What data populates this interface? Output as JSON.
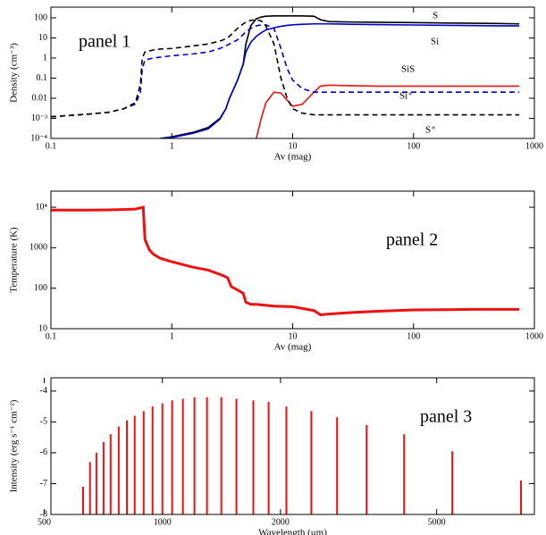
{
  "chart_data": [
    {
      "type": "line",
      "annotation": "panel 1",
      "xlabel": "Av (mag)",
      "ylabel": "Density (cm⁻³)",
      "log_x": true,
      "log_y": true,
      "xlim": [
        0.1,
        1000
      ],
      "ylim": [
        0.0001,
        340
      ],
      "xticks": [
        0.1,
        1,
        10,
        100,
        1000
      ],
      "yticks": [
        {
          "value": 0.0001,
          "label": "10⁻⁴"
        },
        {
          "value": 0.001,
          "label": "10⁻³"
        },
        0.01,
        0.1,
        1,
        10,
        100
      ],
      "x": [
        0.1,
        0.2,
        0.3,
        0.4,
        0.5,
        0.55,
        0.57,
        0.6,
        0.7,
        0.8,
        1,
        1.5,
        2,
        2.5,
        2.8,
        3,
        3.5,
        3.9,
        4.1,
        4.5,
        5,
        5.5,
        6,
        7,
        8,
        9,
        10,
        12,
        15,
        17,
        20,
        30,
        50,
        100,
        200,
        500,
        750
      ],
      "series": [
        {
          "name": "S",
          "color": "#000000",
          "line_style": "solid",
          "values": [
            null,
            null,
            null,
            null,
            null,
            null,
            null,
            null,
            null,
            0.0001,
            0.00012,
            0.0002,
            0.00035,
            0.001,
            0.003,
            0.01,
            0.08,
            0.5,
            5,
            40,
            90,
            110,
            120,
            125,
            125,
            125,
            125,
            125,
            120,
            80,
            65,
            62,
            60,
            58,
            55,
            52,
            50
          ]
        },
        {
          "name": "Si",
          "color": "#0000cc",
          "line_style": "solid",
          "values": [
            null,
            null,
            null,
            null,
            null,
            null,
            null,
            null,
            null,
            0.0001,
            0.00011,
            0.00018,
            0.0003,
            0.0009,
            0.003,
            0.01,
            0.08,
            0.5,
            2,
            6,
            12,
            18,
            25,
            32,
            38,
            42,
            45,
            48,
            50,
            50,
            50,
            48,
            46,
            44,
            42,
            40,
            40
          ]
        },
        {
          "name": "SiS",
          "color": "#ee1111",
          "line_style": "solid",
          "values": [
            null,
            null,
            null,
            null,
            null,
            null,
            null,
            null,
            null,
            null,
            null,
            null,
            null,
            null,
            null,
            null,
            null,
            null,
            null,
            null,
            0.0001,
            0.001,
            0.006,
            0.02,
            0.018,
            0.008,
            0.004,
            0.005,
            0.02,
            0.04,
            0.045,
            0.042,
            0.04,
            0.04,
            0.04,
            0.04,
            0.04
          ]
        },
        {
          "name": "Si⁺",
          "color": "#0000cc",
          "line_style": "dashed",
          "values": [
            0.0012,
            0.0016,
            0.002,
            0.003,
            0.005,
            0.02,
            0.3,
            0.8,
            1,
            1.1,
            1.3,
            1.6,
            2,
            3,
            4,
            5,
            8,
            15,
            20,
            30,
            40,
            45,
            45,
            30,
            3,
            0.3,
            0.08,
            0.03,
            0.02,
            0.02,
            0.02,
            0.02,
            0.02,
            0.02,
            0.02,
            0.02,
            0.02
          ]
        },
        {
          "name": "S⁺",
          "color": "#000000",
          "line_style": "dashed",
          "values": [
            0.0012,
            0.0016,
            0.002,
            0.003,
            0.006,
            0.05,
            1,
            2,
            2.5,
            2.8,
            3,
            4,
            5,
            7,
            9,
            12,
            30,
            50,
            60,
            75,
            80,
            70,
            40,
            5,
            0.1,
            0.01,
            0.003,
            0.0018,
            0.0015,
            0.0015,
            0.0015,
            0.0015,
            0.0015,
            0.0015,
            0.0015,
            0.0015,
            0.0015
          ]
        }
      ]
    },
    {
      "type": "line",
      "annotation": "panel 2",
      "xlabel": "Av (mag)",
      "ylabel": "Temperature (K)",
      "log_x": true,
      "log_y": true,
      "xlim": [
        0.1,
        1000
      ],
      "ylim": [
        10,
        25000
      ],
      "xticks": [
        0.1,
        1,
        10,
        100,
        1000
      ],
      "yticks": [
        10,
        100,
        1000,
        {
          "value": 10000,
          "label": "10⁴"
        }
      ],
      "x": [
        0.1,
        0.2,
        0.3,
        0.5,
        0.58,
        0.6,
        0.65,
        0.7,
        0.8,
        1,
        1.5,
        2,
        2.5,
        2.7,
        2.9,
        3.1,
        3.5,
        3.9,
        4.1,
        4.5,
        5,
        7,
        10,
        15,
        17,
        20,
        30,
        50,
        100,
        300,
        750
      ],
      "series": [
        {
          "name": null,
          "color": "#ee1111",
          "line_style": "solid",
          "line_width": 3,
          "values": [
            8500,
            8500,
            8600,
            9000,
            10000,
            1600,
            900,
            700,
            550,
            450,
            330,
            280,
            220,
            200,
            180,
            110,
            90,
            75,
            45,
            40,
            40,
            36,
            35,
            28,
            22,
            23,
            25,
            27,
            29,
            30,
            30
          ]
        }
      ]
    },
    {
      "type": "stem",
      "annotation": "panel 3",
      "xlabel": "Wavelength (μm)",
      "ylabel": "Intensity (erg s⁻¹ cm⁻²)",
      "log_x": true,
      "log_y": false,
      "xlim": [
        520,
        8870
      ],
      "ylim": [
        -8,
        -3.57
      ],
      "xticks": [
        500,
        1000,
        2000,
        5000
      ],
      "yticks": [
        -8,
        -7,
        -6,
        -5,
        -4
      ],
      "color": "#ee1111",
      "x": [
        628,
        654,
        679,
        708,
        738,
        774,
        812,
        850,
        896,
        944,
        1000,
        1059,
        1128,
        1207,
        1299,
        1413,
        1544,
        1705,
        1865,
        2070,
        2396,
        2787,
        3315,
        4130,
        5480,
        8200
      ],
      "values": [
        -7.1,
        -6.3,
        -6.0,
        -5.65,
        -5.4,
        -5.15,
        -4.95,
        -4.8,
        -4.65,
        -4.5,
        -4.4,
        -4.3,
        -4.25,
        -4.2,
        -4.2,
        -4.2,
        -4.25,
        -4.3,
        -4.35,
        -4.5,
        -4.65,
        -4.85,
        -5.1,
        -5.4,
        -5.95,
        -6.9
      ]
    }
  ]
}
